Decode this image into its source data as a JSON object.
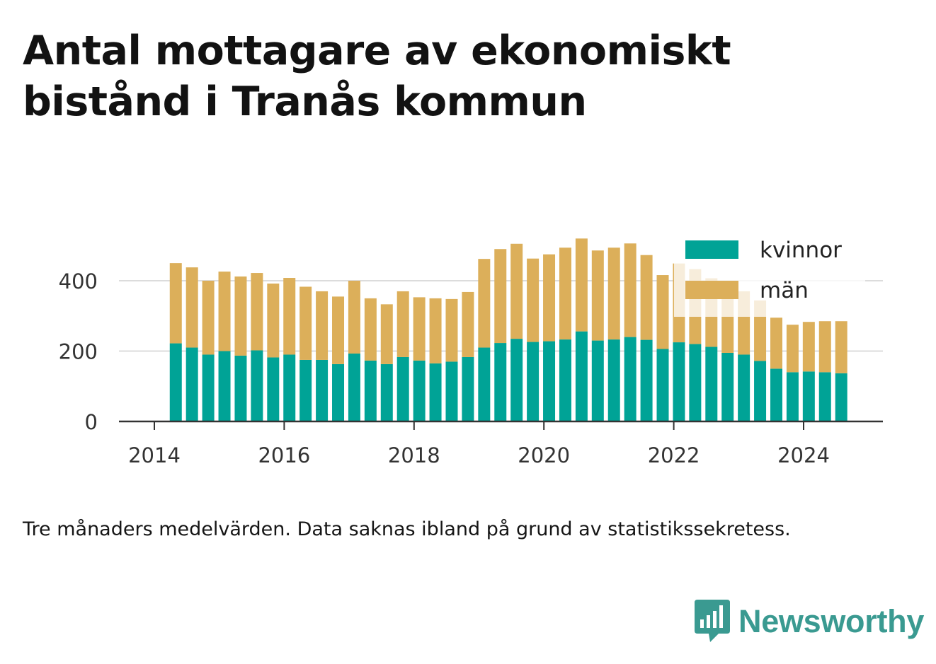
{
  "header": {
    "title": "Antal mottagare av ekonomiskt bistånd i Tranås kommun"
  },
  "footer": {
    "note": "Tre månaders medelvärden. Data saknas ibland på grund av statistikssekretess.",
    "brand": "Newsworthy"
  },
  "colors": {
    "kvinnor": "#00a396",
    "man": "#dcaf5a",
    "grid": "#dcdcdc",
    "axis": "#333333",
    "brand": "#3a9a91"
  },
  "chart_data": {
    "type": "bar",
    "stacked": true,
    "title": "Antal mottagare av ekonomiskt bistånd i Tranås kommun",
    "xlabel": "",
    "ylabel": "",
    "ylim": [
      0,
      530
    ],
    "yticks": [
      0,
      200,
      400
    ],
    "xticks": [
      "2014",
      "2016",
      "2018",
      "2020",
      "2022",
      "2024"
    ],
    "xrange": [
      2014.0,
      2025.25
    ],
    "grid": true,
    "legend": "top-right",
    "x": [
      2014.33,
      2014.58,
      2014.83,
      2015.08,
      2015.33,
      2015.58,
      2015.83,
      2016.08,
      2016.33,
      2016.58,
      2016.83,
      2017.08,
      2017.33,
      2017.58,
      2017.83,
      2018.08,
      2018.33,
      2018.58,
      2018.83,
      2019.08,
      2019.33,
      2019.58,
      2019.83,
      2020.08,
      2020.33,
      2020.58,
      2020.83,
      2021.08,
      2021.33,
      2021.58,
      2021.83,
      2022.08,
      2022.33,
      2022.58,
      2022.83,
      2023.08,
      2023.33,
      2023.58,
      2023.83,
      2024.08,
      2024.33,
      2024.58
    ],
    "series": [
      {
        "name": "kvinnor",
        "values": [
          222,
          210,
          190,
          200,
          187,
          202,
          182,
          190,
          175,
          175,
          163,
          193,
          173,
          163,
          183,
          173,
          165,
          170,
          183,
          210,
          223,
          235,
          226,
          228,
          233,
          256,
          230,
          233,
          240,
          232,
          206,
          225,
          220,
          212,
          195,
          190,
          172,
          150,
          140,
          142,
          140,
          137
        ]
      },
      {
        "name": "män",
        "values": [
          228,
          228,
          210,
          226,
          225,
          220,
          210,
          218,
          208,
          195,
          192,
          207,
          177,
          170,
          187,
          180,
          185,
          178,
          185,
          252,
          267,
          270,
          237,
          247,
          261,
          264,
          256,
          261,
          266,
          241,
          210,
          224,
          213,
          195,
          180,
          180,
          172,
          145,
          135,
          141,
          145,
          148
        ]
      }
    ]
  }
}
